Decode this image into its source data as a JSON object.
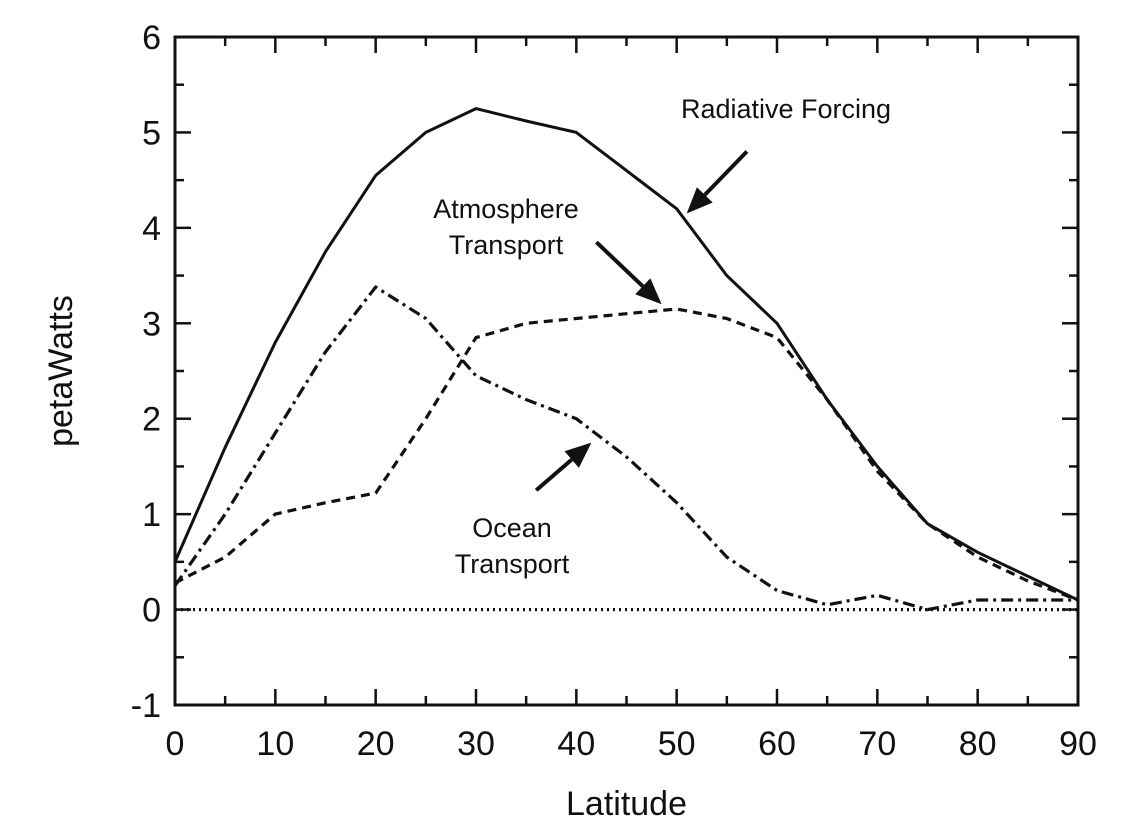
{
  "chart_data": {
    "type": "line",
    "title": "",
    "xlabel": "Latitude",
    "ylabel": "petaWatts",
    "xlim": [
      0,
      90
    ],
    "ylim": [
      -1,
      6
    ],
    "xticks": [
      0,
      10,
      20,
      30,
      40,
      50,
      60,
      70,
      80,
      90
    ],
    "yticks": [
      -1,
      0,
      1,
      2,
      3,
      4,
      5,
      6
    ],
    "xtick_labels": [
      "0",
      "10",
      "20",
      "30",
      "40",
      "50",
      "60",
      "70",
      "80",
      "90"
    ],
    "ytick_labels": [
      "-1",
      "0",
      "1",
      "2",
      "3",
      "4",
      "5",
      "6"
    ],
    "grid": false,
    "series": [
      {
        "name": "Radiative Forcing",
        "style": "solid",
        "x": [
          0,
          5,
          10,
          15,
          20,
          25,
          30,
          35,
          40,
          45,
          50,
          55,
          60,
          65,
          70,
          75,
          80,
          85,
          90
        ],
        "values": [
          0.5,
          1.7,
          2.8,
          3.75,
          4.55,
          5.0,
          5.25,
          5.12,
          5.0,
          4.6,
          4.2,
          3.5,
          3.0,
          2.2,
          1.5,
          0.9,
          0.6,
          0.35,
          0.1
        ]
      },
      {
        "name": "Atmosphere Transport",
        "style": "dashed",
        "x": [
          0,
          5,
          10,
          15,
          20,
          25,
          30,
          35,
          40,
          45,
          50,
          55,
          60,
          65,
          70,
          75,
          80,
          85,
          90
        ],
        "values": [
          0.28,
          0.55,
          1.0,
          1.12,
          1.22,
          2.0,
          2.85,
          3.0,
          3.05,
          3.1,
          3.15,
          3.05,
          2.85,
          2.2,
          1.45,
          0.9,
          0.55,
          0.3,
          0.1
        ]
      },
      {
        "name": "Ocean Transport",
        "style": "dash-dot",
        "x": [
          0,
          5,
          10,
          15,
          20,
          25,
          30,
          35,
          40,
          45,
          50,
          55,
          60,
          65,
          70,
          75,
          80,
          85,
          90
        ],
        "values": [
          0.25,
          1.0,
          1.85,
          2.7,
          3.38,
          3.05,
          2.45,
          2.2,
          2.0,
          1.6,
          1.12,
          0.55,
          0.2,
          0.05,
          0.15,
          0.0,
          0.1,
          0.1,
          0.1
        ]
      },
      {
        "name": "Zero",
        "style": "dotted",
        "x": [
          0,
          90
        ],
        "values": [
          0,
          0
        ]
      }
    ],
    "annotations": [
      {
        "lines": [
          "Radiative Forcing"
        ],
        "arrow_from": [
          57,
          4.8
        ],
        "arrow_to": [
          51,
          4.15
        ]
      },
      {
        "lines": [
          "Atmosphere",
          "Transport"
        ],
        "arrow_from": [
          42,
          3.85
        ],
        "arrow_to": [
          48.5,
          3.2
        ]
      },
      {
        "lines": [
          "Ocean",
          "Transport"
        ],
        "arrow_from": [
          36,
          1.25
        ],
        "arrow_to": [
          41.5,
          1.75
        ]
      }
    ]
  }
}
